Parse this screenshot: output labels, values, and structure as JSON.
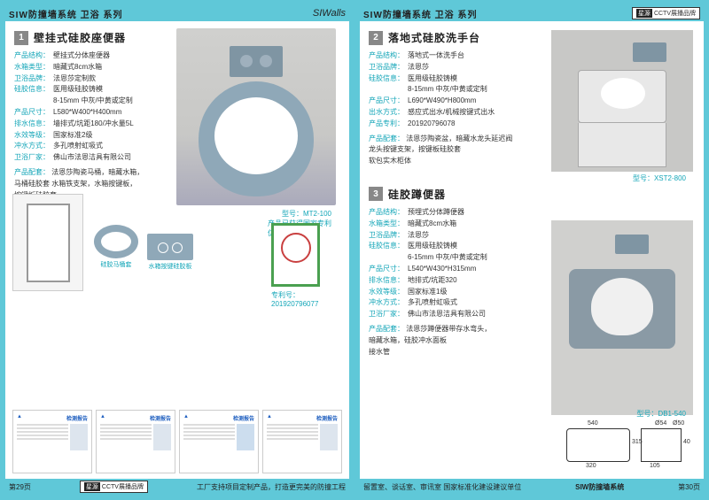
{
  "header": {
    "left_title": "SIW防撞墙系统 卫浴 系列",
    "logo": "SIWalls",
    "right_title": "SIW防撞墙系统 卫浴 系列",
    "cctv_dark": "星源",
    "cctv_label": "CCTV展播品牌"
  },
  "footer": {
    "page_left": "第29页",
    "factory_note": "工厂支持项目定制产品，打造更完美的防撞工程",
    "dept_note": "留置室、谈话室、审讯室  国家标准化建设建议单位",
    "system": "SIW防撞墙系统",
    "page_right": "第30页"
  },
  "product1": {
    "num": "1",
    "title": "壁挂式硅胶座便器",
    "specs": [
      [
        "产品结构：",
        "壁挂式分体座便器"
      ],
      [
        "水箱类型：",
        "暗藏式8cm水箱"
      ],
      [
        "卫浴品牌：",
        "法恩莎定制款"
      ],
      [
        "硅胶信息：",
        "医用级硅胶铸模"
      ],
      [
        "",
        "8-15mm 中灰/中黄或定制"
      ],
      [
        "产品尺寸：",
        "L580*W400*H400mm"
      ],
      [
        "排水信息：",
        "墙排式/坑距180/冲水量5L"
      ],
      [
        "水效等级：",
        "国家标准2级"
      ],
      [
        "冲水方式：",
        "多孔喷射虹吸式"
      ],
      [
        "卫浴厂家：",
        "佛山市法恩洁具有限公司"
      ]
    ],
    "config_label": "产品配套：",
    "config": "法恩莎陶瓷马桶，暗藏水箱，\n马桶硅胶套   水箱铁支架，水箱按键板，\n按键板硅胶套",
    "model": "型号：MT2-100",
    "patent_note": "产品已获得国家专利\n仿冒必究",
    "seat_label": "硅胶马桶套",
    "plate_label": "水箱按键硅胶板",
    "patent_label": "专利号：",
    "patent_num": "201920796077"
  },
  "product2": {
    "num": "2",
    "title": "落地式硅胶洗手台",
    "specs": [
      [
        "产品结构：",
        "落地式一体洗手台"
      ],
      [
        "卫浴品牌：",
        "法恩莎"
      ],
      [
        "硅胶信息：",
        "医用级硅胶铸模"
      ],
      [
        "",
        "8-15mm 中灰/中黄或定制"
      ],
      [
        "产品尺寸：",
        "L690*W490*H800mm"
      ],
      [
        "出水方式：",
        "感应式出水/机械按键式出水"
      ],
      [
        "产品专利：",
        "201920796078"
      ]
    ],
    "config_label": "产品配套：",
    "config": "法恩莎陶瓷盆，暗藏水龙头延迟阀\n龙头按键支架，按键板硅胶套\n软包实木柜体",
    "model": "型号：XST2-800"
  },
  "product3": {
    "num": "3",
    "title": "硅胶蹲便器",
    "specs": [
      [
        "产品结构：",
        "预埋式分体蹲便器"
      ],
      [
        "水箱类型：",
        "暗藏式8cm水箱"
      ],
      [
        "卫浴品牌：",
        "法恩莎"
      ],
      [
        "硅胶信息：",
        "医用级硅胶铸模"
      ],
      [
        "",
        "6-15mm 中灰/中黄或定制"
      ],
      [
        "产品尺寸：",
        "L540*W430*H315mm"
      ],
      [
        "排水信息：",
        "地排式/坑距320"
      ],
      [
        "水效等级：",
        "国家标准1级"
      ],
      [
        "冲水方式：",
        "多孔喷射虹吸式"
      ],
      [
        "卫浴厂家：",
        "佛山市法恩洁具有限公司"
      ]
    ],
    "config_label": "产品配套：",
    "config": "法恩莎蹲便器带存水弯头，\n暗藏水箱，硅胶冲水面板\n接水管",
    "model": "型号：DB1-540",
    "dims": {
      "w": "540",
      "h": "315",
      "d": "105",
      "d2": "320",
      "inner": "40",
      "dia": "Ø54",
      "dia2": "Ø50"
    }
  },
  "cert_title": "检测报告"
}
